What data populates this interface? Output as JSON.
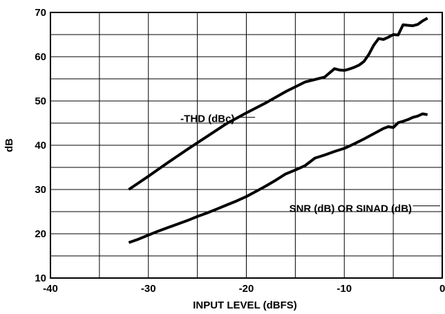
{
  "chart_data": {
    "type": "line",
    "xlabel": "INPUT LEVEL (dBFS)",
    "ylabel": "dB",
    "xlim": [
      -40,
      0
    ],
    "ylim": [
      10,
      70
    ],
    "x_ticks": [
      -40,
      -30,
      -20,
      -10,
      0
    ],
    "y_ticks": [
      10,
      20,
      30,
      40,
      50,
      60,
      70
    ],
    "x_grid_step": 5,
    "y_grid_step": 5,
    "grid": true,
    "series": [
      {
        "name": "-THD (dBc)",
        "x": [
          -32,
          -30,
          -28,
          -26,
          -24,
          -22,
          -20,
          -18,
          -16,
          -14,
          -12,
          -11,
          -10.5,
          -10,
          -9.5,
          -9,
          -8.5,
          -8,
          -7.5,
          -7,
          -6.5,
          -6,
          -5.5,
          -5,
          -4.5,
          -4,
          -3.5,
          -3,
          -2.5,
          -2,
          -1.5
        ],
        "y": [
          30,
          33,
          36.1,
          39.1,
          42,
          44.9,
          47.3,
          49.6,
          52.1,
          54.3,
          55.4,
          57.3,
          57,
          56.9,
          57.2,
          57.6,
          58.1,
          58.9,
          60.5,
          62.6,
          64.1,
          63.9,
          64.4,
          65,
          64.9,
          67.2,
          67.1,
          67,
          67.3,
          68.1,
          68.7
        ],
        "label_text": "-THD (dBc)"
      },
      {
        "name": "SNR (dB) OR SINAD (dB)",
        "x": [
          -32,
          -31,
          -30,
          -29,
          -28,
          -27,
          -26,
          -25,
          -24,
          -23,
          -22,
          -21,
          -20,
          -19,
          -18,
          -17,
          -16,
          -15,
          -14,
          -13,
          -12,
          -11,
          -10,
          -9,
          -8,
          -7,
          -6,
          -5.5,
          -5,
          -4.5,
          -4,
          -3.5,
          -3,
          -2.5,
          -2,
          -1.5
        ],
        "y": [
          18,
          18.8,
          19.7,
          20.6,
          21.4,
          22.2,
          23,
          23.9,
          24.7,
          25.6,
          26.5,
          27.4,
          28.4,
          29.6,
          30.8,
          32.1,
          33.5,
          34.4,
          35.4,
          37.1,
          37.8,
          38.6,
          39.3,
          40.3,
          41.4,
          42.6,
          43.8,
          44.2,
          44,
          45.1,
          45.4,
          45.8,
          46.3,
          46.6,
          47.1,
          46.9
        ],
        "label_text": "SNR (dB) OR SINAD (dB)"
      }
    ],
    "colors": {
      "line": "#000000",
      "grid": "#000000",
      "background": "#ffffff"
    }
  }
}
